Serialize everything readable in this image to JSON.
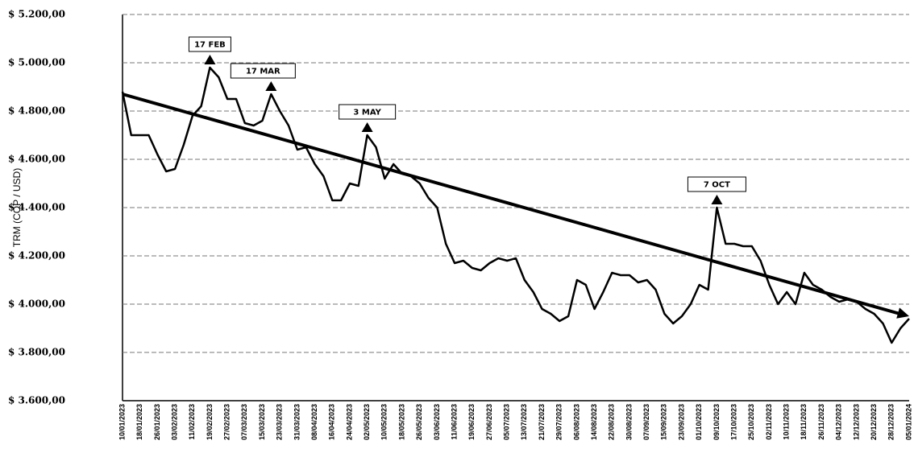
{
  "chart_data": {
    "type": "line",
    "y_label": "TRM (COP / USD)",
    "categories": [
      "10/01/2023",
      null,
      "18/01/2023",
      null,
      "26/01/2023",
      null,
      "03/02/2023",
      null,
      "11/02/2023",
      null,
      "19/02/2023",
      null,
      "27/02/2023",
      null,
      "07/03/2023",
      null,
      "15/03/2023",
      null,
      "23/03/2023",
      null,
      "31/03/2023",
      null,
      "08/04/2023",
      null,
      "16/04/2023",
      null,
      "24/04/2023",
      null,
      "02/05/2023",
      null,
      "10/05/2023",
      null,
      "18/05/2023",
      null,
      "26/05/2023",
      null,
      "03/06/2023",
      null,
      "11/06/2023",
      null,
      "19/06/2023",
      null,
      "27/06/2023",
      null,
      "05/07/2023",
      null,
      "13/07/2023",
      null,
      "21/07/2023",
      null,
      "29/07/2023",
      null,
      "06/08/2023",
      null,
      "14/08/2023",
      null,
      "22/08/2023",
      null,
      "30/08/2023",
      null,
      "07/09/2023",
      null,
      "15/09/2023",
      null,
      "23/09/2023",
      null,
      "01/10/2023",
      null,
      "09/10/2023",
      null,
      "17/10/2023",
      null,
      "25/10/2023",
      null,
      "02/11/2023",
      null,
      "10/11/2023",
      null,
      "18/11/2023",
      null,
      "26/11/2023",
      null,
      "04/12/2023",
      null,
      "12/12/2023",
      null,
      "20/12/2023",
      null,
      "28/12/2023",
      null,
      "05/01/2024"
    ],
    "values": [
      4880,
      4700,
      4700,
      4700,
      4620,
      4550,
      4560,
      4660,
      4780,
      4820,
      4980,
      4940,
      4850,
      4850,
      4750,
      4740,
      4760,
      4870,
      4800,
      4740,
      4640,
      4650,
      4580,
      4530,
      4430,
      4430,
      4500,
      4490,
      4700,
      4650,
      4520,
      4580,
      4540,
      4530,
      4500,
      4440,
      4400,
      4250,
      4170,
      4180,
      4150,
      4140,
      4170,
      4190,
      4180,
      4190,
      4100,
      4050,
      3980,
      3960,
      3930,
      3950,
      4100,
      4080,
      3980,
      4050,
      4130,
      4120,
      4120,
      4090,
      4100,
      4060,
      3960,
      3920,
      3950,
      4000,
      4080,
      4060,
      4400,
      4250,
      4250,
      4240,
      4240,
      4180,
      4080,
      4000,
      4050,
      4000,
      4130,
      4080,
      4060,
      4030,
      4010,
      4020,
      4010,
      3980,
      3960,
      3920,
      3840,
      3900,
      3940
    ],
    "color": "#000000",
    "trendline": [
      4870,
      3950
    ],
    "annotations": [
      "17 FEB",
      "17 MAR",
      "3 MAY",
      "7 OCT"
    ],
    "ylim": [
      3600,
      5200
    ],
    "yticks": [
      {
        "value": 3600,
        "label": "$ 3.600,00"
      },
      {
        "value": 3800,
        "label": "$ 3.800,00"
      },
      {
        "value": 4000,
        "label": "$ 4.000,00"
      },
      {
        "value": 4200,
        "label": "$ 4.200,00"
      },
      {
        "value": 4400,
        "label": "$ 4.400,00"
      },
      {
        "value": 4600,
        "label": "$ 4.600,00"
      },
      {
        "value": 4800,
        "label": "$ 4.800,00"
      },
      {
        "value": 5000,
        "label": "$ 5.000,00"
      },
      {
        "value": 5200,
        "label": "$ 5.200,00"
      }
    ],
    "grid": true
  }
}
